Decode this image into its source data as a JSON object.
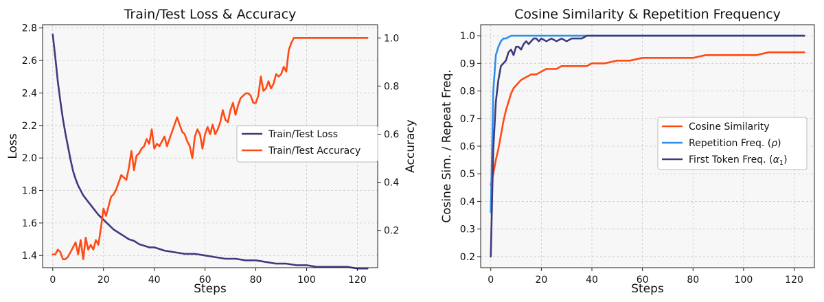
{
  "chart_data": [
    {
      "type": "line",
      "title": "Train/Test Loss & Accuracy",
      "xlabel": "Steps",
      "ylabel": "Loss",
      "ylabel_right": "Accuracy",
      "xlim": [
        -4,
        128
      ],
      "ylim": [
        1.325,
        2.82
      ],
      "ylim_right": [
        0.045,
        1.055
      ],
      "xticks": [
        "0",
        "20",
        "40",
        "60",
        "80",
        "100",
        "120"
      ],
      "yticks": [
        "1.4",
        "1.6",
        "1.8",
        "2.0",
        "2.2",
        "2.4",
        "2.6",
        "2.8"
      ],
      "yticks_right": [
        "0.2",
        "0.4",
        "0.6",
        "0.8",
        "1.0"
      ],
      "grid": true,
      "legend_position": "center-right",
      "series": [
        {
          "name": "Train/Test Loss",
          "axis": "left",
          "color": "#3d3a7e",
          "x": [
            0,
            1,
            2,
            3,
            4,
            5,
            6,
            7,
            8,
            9,
            10,
            12,
            14,
            16,
            18,
            20,
            22,
            24,
            26,
            28,
            30,
            32,
            34,
            36,
            38,
            40,
            44,
            48,
            52,
            56,
            60,
            64,
            68,
            72,
            76,
            80,
            84,
            88,
            92,
            96,
            100,
            104,
            108,
            112,
            116,
            120,
            124
          ],
          "y": [
            2.76,
            2.62,
            2.47,
            2.35,
            2.24,
            2.15,
            2.07,
            1.99,
            1.92,
            1.87,
            1.83,
            1.77,
            1.73,
            1.69,
            1.65,
            1.62,
            1.59,
            1.56,
            1.54,
            1.52,
            1.5,
            1.49,
            1.47,
            1.46,
            1.45,
            1.45,
            1.43,
            1.42,
            1.41,
            1.41,
            1.4,
            1.39,
            1.38,
            1.38,
            1.37,
            1.37,
            1.36,
            1.35,
            1.35,
            1.34,
            1.34,
            1.33,
            1.33,
            1.33,
            1.33,
            1.32,
            1.32
          ]
        },
        {
          "name": "Train/Test Accuracy",
          "axis": "right",
          "color": "#ff4a14",
          "x": [
            0,
            1,
            2,
            3,
            4,
            5,
            6,
            7,
            8,
            9,
            10,
            11,
            12,
            13,
            14,
            15,
            16,
            17,
            18,
            19,
            20,
            21,
            22,
            23,
            24,
            25,
            26,
            27,
            28,
            29,
            30,
            31,
            32,
            33,
            34,
            35,
            36,
            37,
            38,
            39,
            40,
            41,
            42,
            43,
            44,
            45,
            46,
            47,
            48,
            49,
            50,
            51,
            52,
            53,
            54,
            55,
            56,
            57,
            58,
            59,
            60,
            61,
            62,
            63,
            64,
            65,
            66,
            67,
            68,
            69,
            70,
            71,
            72,
            73,
            74,
            75,
            76,
            77,
            78,
            79,
            80,
            81,
            82,
            83,
            84,
            85,
            86,
            87,
            88,
            89,
            90,
            91,
            92,
            93,
            94,
            95,
            96,
            100,
            105,
            110,
            115,
            120,
            124
          ],
          "y": [
            0.1,
            0.1,
            0.12,
            0.11,
            0.08,
            0.08,
            0.09,
            0.11,
            0.13,
            0.15,
            0.1,
            0.16,
            0.08,
            0.17,
            0.12,
            0.14,
            0.12,
            0.16,
            0.14,
            0.21,
            0.29,
            0.26,
            0.3,
            0.34,
            0.35,
            0.37,
            0.4,
            0.43,
            0.42,
            0.41,
            0.46,
            0.53,
            0.45,
            0.51,
            0.52,
            0.54,
            0.55,
            0.58,
            0.56,
            0.62,
            0.54,
            0.56,
            0.55,
            0.57,
            0.59,
            0.55,
            0.58,
            0.61,
            0.64,
            0.67,
            0.64,
            0.61,
            0.6,
            0.57,
            0.55,
            0.5,
            0.59,
            0.62,
            0.6,
            0.54,
            0.6,
            0.63,
            0.6,
            0.64,
            0.6,
            0.62,
            0.65,
            0.7,
            0.66,
            0.65,
            0.7,
            0.73,
            0.68,
            0.72,
            0.75,
            0.76,
            0.77,
            0.77,
            0.76,
            0.73,
            0.73,
            0.76,
            0.84,
            0.78,
            0.79,
            0.82,
            0.79,
            0.81,
            0.85,
            0.84,
            0.85,
            0.88,
            0.86,
            0.95,
            0.98,
            1.0,
            1.0,
            1.0,
            1.0,
            1.0,
            1.0,
            1.0,
            1.0
          ]
        }
      ]
    },
    {
      "type": "line",
      "title": "Cosine Similarity & Repetition Frequency",
      "xlabel": "Steps",
      "ylabel": "Cosine Sim. / Repeat Freq.",
      "xlim": [
        -4,
        128
      ],
      "ylim": [
        0.16,
        1.04
      ],
      "xticks": [
        "0",
        "20",
        "40",
        "60",
        "80",
        "100",
        "120"
      ],
      "yticks": [
        "0.2",
        "0.3",
        "0.4",
        "0.5",
        "0.6",
        "0.7",
        "0.8",
        "0.9",
        "1.0"
      ],
      "grid": true,
      "legend_position": "center-right",
      "series": [
        {
          "name": "Cosine Similarity",
          "color": "#ff4a14",
          "x": [
            0,
            1,
            2,
            3,
            4,
            5,
            6,
            7,
            8,
            9,
            10,
            12,
            14,
            16,
            18,
            20,
            22,
            24,
            26,
            28,
            30,
            32,
            34,
            36,
            38,
            40,
            45,
            50,
            55,
            60,
            65,
            70,
            75,
            80,
            85,
            90,
            95,
            100,
            105,
            110,
            115,
            120,
            124
          ],
          "y": [
            0.46,
            0.5,
            0.55,
            0.59,
            0.64,
            0.69,
            0.73,
            0.76,
            0.79,
            0.81,
            0.82,
            0.84,
            0.85,
            0.86,
            0.86,
            0.87,
            0.88,
            0.88,
            0.88,
            0.89,
            0.89,
            0.89,
            0.89,
            0.89,
            0.89,
            0.9,
            0.9,
            0.91,
            0.91,
            0.92,
            0.92,
            0.92,
            0.92,
            0.92,
            0.93,
            0.93,
            0.93,
            0.93,
            0.93,
            0.94,
            0.94,
            0.94,
            0.94
          ]
        },
        {
          "name": "Repetition Freq. (ρ)",
          "color": "#2f8fe8",
          "x": [
            0,
            1,
            2,
            3,
            4,
            5,
            6,
            8,
            10,
            15,
            20,
            30,
            40,
            50,
            60,
            80,
            100,
            124
          ],
          "y": [
            0.36,
            0.8,
            0.93,
            0.96,
            0.98,
            0.99,
            0.99,
            1.0,
            1.0,
            1.0,
            1.0,
            1.0,
            1.0,
            1.0,
            1.0,
            1.0,
            1.0,
            1.0
          ],
          "legend_label": "Repetition Freq.",
          "legend_symbol": "ρ"
        },
        {
          "name": "First Token Freq. (α₁)",
          "color": "#3d3a7e",
          "x": [
            0,
            1,
            2,
            3,
            4,
            5,
            6,
            7,
            8,
            9,
            10,
            11,
            12,
            13,
            14,
            15,
            16,
            17,
            18,
            19,
            20,
            22,
            24,
            26,
            28,
            30,
            32,
            34,
            36,
            38,
            40,
            45,
            50,
            60,
            80,
            100,
            124
          ],
          "y": [
            0.2,
            0.59,
            0.76,
            0.84,
            0.89,
            0.9,
            0.91,
            0.94,
            0.95,
            0.93,
            0.96,
            0.96,
            0.95,
            0.97,
            0.98,
            0.97,
            0.98,
            0.99,
            0.99,
            0.98,
            0.99,
            0.98,
            0.99,
            0.98,
            0.99,
            0.98,
            0.99,
            0.99,
            0.99,
            1.0,
            1.0,
            1.0,
            1.0,
            1.0,
            1.0,
            1.0,
            1.0
          ],
          "legend_label": "First Token Freq.",
          "legend_symbol": "α",
          "legend_subscript": "1"
        }
      ]
    }
  ]
}
